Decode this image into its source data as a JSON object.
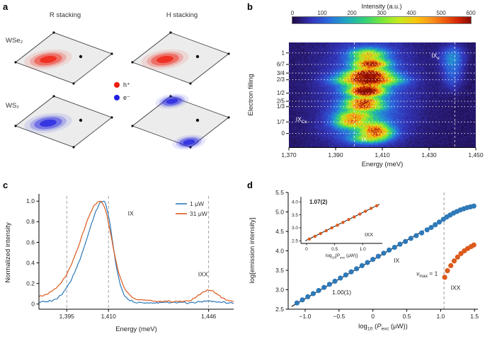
{
  "panel_labels": {
    "a": "a",
    "b": "b",
    "c": "c",
    "d": "d"
  },
  "colors": {
    "colormap": [
      [
        0,
        "#200a45"
      ],
      [
        0.1,
        "#3333b8"
      ],
      [
        0.2,
        "#2b6ae0"
      ],
      [
        0.3,
        "#1fa7c4"
      ],
      [
        0.4,
        "#2fd07c"
      ],
      [
        0.5,
        "#77e83b"
      ],
      [
        0.6,
        "#c8ea1e"
      ],
      [
        0.7,
        "#fbc40e"
      ],
      [
        0.78,
        "#f9941c"
      ],
      [
        0.86,
        "#ee5a0d"
      ],
      [
        0.93,
        "#d42507"
      ],
      [
        1,
        "#8a0d00"
      ]
    ],
    "blue": "#2e79b8",
    "orange": "#db5a1c",
    "hole": "#ee1c0c",
    "electron": "#2121e0",
    "dash": "#999999"
  },
  "panel_a": {
    "columns": [
      "R stacking",
      "H stacking"
    ],
    "rows": [
      "WSe₂",
      "WS₂"
    ],
    "legend": [
      {
        "symbol": "hole",
        "color": "#ee1c0c",
        "label": "h⁺"
      },
      {
        "symbol": "electron",
        "color": "#2121e0",
        "label": "e⁻"
      }
    ],
    "cells": [
      {
        "row": 0,
        "col": 0,
        "blob": "hole",
        "blob_color": "#ee1c0c",
        "blob_pos": "interior-left"
      },
      {
        "row": 0,
        "col": 1,
        "blob": "hole",
        "blob_color": "#ee1c0c",
        "blob_pos": "interior-left"
      },
      {
        "row": 1,
        "col": 0,
        "blob": "electron",
        "blob_color": "#2121e0",
        "blob_pos": "interior-left"
      },
      {
        "row": 1,
        "col": 1,
        "blob": "electron",
        "blob_color": "#2121e0",
        "blob_pos": "corners-vertical"
      }
    ]
  },
  "chart_data": [
    {
      "id": "panel_b",
      "type": "heatmap",
      "title": "",
      "xlabel": "Energy (meV)",
      "ylabel": "Electron filling",
      "xlim": [
        1370,
        1450
      ],
      "flim": [
        -0.17,
        1.13
      ],
      "colorbar": {
        "title": "Intensity (a.u.)",
        "min": 0,
        "max": 600,
        "ticks": [
          "0",
          "100",
          "200",
          "300",
          "400",
          "500",
          "600"
        ]
      },
      "xticks": [
        {
          "v": 1370,
          "t": "1,370"
        },
        {
          "v": 1390,
          "t": "1,390"
        },
        {
          "v": 1410,
          "t": "1,410"
        },
        {
          "v": 1430,
          "t": "1,430"
        },
        {
          "v": 1450,
          "t": "1,450"
        }
      ],
      "yticks": [
        {
          "v": 1,
          "t": "1"
        },
        {
          "v": 0.857,
          "t": "6/7"
        },
        {
          "v": 0.75,
          "t": "3/4"
        },
        {
          "v": 0.667,
          "t": "2/3"
        },
        {
          "v": 0.5,
          "t": "1/2"
        },
        {
          "v": 0.4,
          "t": "2/5"
        },
        {
          "v": 0.333,
          "t": "1/3"
        },
        {
          "v": 0.143,
          "t": "1/7"
        },
        {
          "v": 0,
          "t": "0"
        }
      ],
      "vlines": [
        1398,
        1441
      ],
      "features": [
        [
          1404,
          0.98,
          5,
          0.05,
          340
        ],
        [
          1405,
          0.86,
          5,
          0.04,
          520
        ],
        [
          1404,
          0.75,
          6,
          0.035,
          500
        ],
        [
          1404,
          0.66,
          8,
          0.045,
          600
        ],
        [
          1403,
          0.55,
          5,
          0.035,
          400
        ],
        [
          1403,
          0.5,
          5,
          0.035,
          460
        ],
        [
          1402,
          0.4,
          5,
          0.03,
          430
        ],
        [
          1402,
          0.33,
          5.5,
          0.03,
          390
        ],
        [
          1398,
          0.22,
          5,
          0.045,
          300
        ],
        [
          1396,
          0.13,
          4,
          0.04,
          260
        ],
        [
          1407,
          0.07,
          4,
          0.05,
          260
        ],
        [
          1408,
          0.0,
          4.5,
          0.045,
          300
        ],
        [
          1404,
          -0.07,
          5,
          0.035,
          210
        ],
        [
          1440,
          0.95,
          3.5,
          0.1,
          130
        ],
        [
          1440,
          0.72,
          3,
          0.12,
          85
        ],
        [
          1404,
          0.55,
          13,
          0.5,
          110
        ],
        [
          1401,
          0.1,
          9,
          0.13,
          110
        ]
      ],
      "annotations": [
        {
          "e": 1431,
          "f": 0.94,
          "parts": [
            {
              "t": "IX"
            },
            {
              "t": "e",
              "sub": true
            }
          ]
        },
        {
          "e": 1373,
          "f": 0.15,
          "parts": [
            {
              "t": "IX"
            },
            {
              "t": "Ce",
              "sub": true
            }
          ]
        },
        {
          "e": 1401,
          "f": -0.1,
          "parts": [
            {
              "t": "IX"
            }
          ]
        }
      ]
    },
    {
      "id": "panel_c",
      "type": "line",
      "xlabel": "Energy (meV)",
      "ylabel": "Normalized intensity",
      "xlim": [
        1385,
        1455
      ],
      "ylim": [
        -0.05,
        1.05
      ],
      "xticks": [
        {
          "v": 1395,
          "t": "1,395"
        },
        {
          "v": 1410,
          "t": "1,410"
        },
        {
          "v": 1446,
          "t": "1,446"
        }
      ],
      "yticks": [
        {
          "v": 0,
          "t": "0"
        },
        {
          "v": 0.2,
          "t": "0.2"
        },
        {
          "v": 0.4,
          "t": "0.4"
        },
        {
          "v": 0.6,
          "t": "0.6"
        },
        {
          "v": 0.8,
          "t": "0.8"
        },
        {
          "v": 1.0,
          "t": "1.0"
        }
      ],
      "dashed_lines": [
        1395,
        1410,
        1446
      ],
      "series": [
        {
          "name": "1 μW",
          "color": "#2e79b8",
          "baseline": 0.012,
          "noise": 0.012,
          "peaks": [
            [
              1408.3,
              5.5,
              3.1,
              0.97
            ],
            [
              1399,
              4,
              3,
              0.1
            ],
            [
              1406,
              9,
              6,
              0.1
            ],
            [
              1446,
              3,
              3,
              0.02
            ]
          ]
        },
        {
          "name": "31 μW",
          "color": "#db5a1c",
          "baseline": 0.03,
          "noise": 0.01,
          "peaks": [
            [
              1407.3,
              6.5,
              3.8,
              0.95
            ],
            [
              1404,
              11,
              8,
              0.22
            ],
            [
              1446,
              3.2,
              3.2,
              0.13
            ]
          ]
        }
      ],
      "annotations": [
        {
          "x": 1418,
          "y": 0.86,
          "parts": [
            {
              "t": "IX"
            }
          ]
        },
        {
          "x": 1444,
          "y": 0.27,
          "parts": [
            {
              "t": "IXX"
            }
          ]
        }
      ]
    },
    {
      "id": "panel_d",
      "type": "scatter",
      "ylabel": "log[emission intensity]",
      "xlabel_parts": [
        {
          "t": "log"
        },
        {
          "t": "10",
          "sub": true
        },
        {
          "t": " ("
        },
        {
          "t": "P",
          "i": true
        },
        {
          "t": "exc",
          "sub": true
        },
        {
          "t": " (μW))"
        }
      ],
      "xlim": [
        -1.25,
        1.55
      ],
      "ylim": [
        2.5,
        5.5
      ],
      "xticks": [
        {
          "v": -1.0,
          "t": "−1.0"
        },
        {
          "v": -0.5,
          "t": "−0.5"
        },
        {
          "v": 0,
          "t": "0"
        },
        {
          "v": 0.5,
          "t": "0.5"
        },
        {
          "v": 1.0,
          "t": "1.0"
        },
        {
          "v": 1.5,
          "t": "1.5"
        }
      ],
      "yticks": [
        {
          "v": 2.5,
          "t": "2.5"
        },
        {
          "v": 3.0,
          "t": "3.0"
        },
        {
          "v": 3.5,
          "t": "3.5"
        },
        {
          "v": 4.0,
          "t": "4.0"
        },
        {
          "v": 4.5,
          "t": "4.5"
        },
        {
          "v": 5.0,
          "t": "5.0"
        },
        {
          "v": 5.5,
          "t": "5.5"
        }
      ],
      "dashed_vline": 1.05,
      "fit_line": {
        "x1": -1.2,
        "y1": 2.57,
        "x2": 0.75,
        "y2": 4.52,
        "label": "1.00(1)",
        "label_x": -0.46,
        "label_y": 2.88
      },
      "series_ix": {
        "name": "IX",
        "color": "#2e79b8",
        "points": [
          [
            -1.12,
            2.66
          ],
          [
            -1.04,
            2.74
          ],
          [
            -0.96,
            2.82
          ],
          [
            -0.88,
            2.9
          ],
          [
            -0.8,
            2.98
          ],
          [
            -0.72,
            3.06
          ],
          [
            -0.64,
            3.14
          ],
          [
            -0.56,
            3.22
          ],
          [
            -0.48,
            3.3
          ],
          [
            -0.4,
            3.38
          ],
          [
            -0.32,
            3.46
          ],
          [
            -0.24,
            3.54
          ],
          [
            -0.16,
            3.62
          ],
          [
            -0.08,
            3.7
          ],
          [
            0.0,
            3.78
          ],
          [
            0.08,
            3.86
          ],
          [
            0.16,
            3.94
          ],
          [
            0.24,
            4.02
          ],
          [
            0.32,
            4.09
          ],
          [
            0.4,
            4.17
          ],
          [
            0.48,
            4.24
          ],
          [
            0.56,
            4.32
          ],
          [
            0.64,
            4.39
          ],
          [
            0.72,
            4.46
          ],
          [
            0.8,
            4.54
          ],
          [
            0.86,
            4.6
          ],
          [
            0.92,
            4.67
          ],
          [
            0.98,
            4.74
          ],
          [
            1.04,
            4.81
          ],
          [
            1.09,
            4.87
          ],
          [
            1.14,
            4.92
          ],
          [
            1.19,
            4.97
          ],
          [
            1.24,
            5.01
          ],
          [
            1.29,
            5.05
          ],
          [
            1.34,
            5.08
          ],
          [
            1.39,
            5.11
          ],
          [
            1.44,
            5.13
          ],
          [
            1.49,
            5.15
          ]
        ]
      },
      "series_ixx": {
        "name": "IXX",
        "color": "#db5a1c",
        "points": [
          [
            1.06,
            3.32
          ],
          [
            1.1,
            3.49
          ],
          [
            1.15,
            3.62
          ],
          [
            1.2,
            3.74
          ],
          [
            1.25,
            3.84
          ],
          [
            1.3,
            3.93
          ],
          [
            1.35,
            4.0
          ],
          [
            1.4,
            4.06
          ],
          [
            1.45,
            4.11
          ],
          [
            1.49,
            4.15
          ]
        ]
      },
      "annotations": [
        {
          "x": 0.35,
          "y": 3.7,
          "parts": [
            {
              "t": "IX"
            }
          ]
        },
        {
          "x": 0.8,
          "y": 3.36,
          "parts": [
            {
              "t": "ν",
              "i": true
            },
            {
              "t": "max",
              "sub": true
            },
            {
              "t": " = 1"
            }
          ]
        },
        {
          "x": 1.22,
          "y": 3.0,
          "parts": [
            {
              "t": "IXX"
            }
          ]
        }
      ],
      "inset": {
        "slope_label": "1.07(2)",
        "label": "IXX",
        "xlabel_parts": [
          {
            "t": "log"
          },
          {
            "t": "10",
            "sub": true
          },
          {
            "t": "["
          },
          {
            "t": "P",
            "i": true
          },
          {
            "t": "exc",
            "sub": true
          },
          {
            "t": " (μW)]"
          }
        ],
        "xlim": [
          -0.1,
          1.35
        ],
        "ylim": [
          2.4,
          4.2
        ],
        "xticks": [
          {
            "v": 0,
            "t": "0"
          },
          {
            "v": 0.5,
            "t": "0.5"
          },
          {
            "v": 1.0,
            "t": "1.0"
          }
        ],
        "yticks": [
          {
            "v": 2.5,
            "t": "2.5"
          },
          {
            "v": 3.0,
            "t": "3.0"
          },
          {
            "v": 3.5,
            "t": "3.5"
          },
          {
            "v": 4.0,
            "t": "4.0"
          }
        ],
        "fit_line": {
          "x1": -0.02,
          "y1": 2.5,
          "x2": 1.3,
          "y2": 3.91
        },
        "points": [
          [
            0.05,
            2.57
          ],
          [
            0.15,
            2.67
          ],
          [
            0.25,
            2.78
          ],
          [
            0.35,
            2.89
          ],
          [
            0.45,
            3.0
          ],
          [
            0.55,
            3.1
          ],
          [
            0.65,
            3.21
          ],
          [
            0.75,
            3.32
          ],
          [
            0.85,
            3.42
          ],
          [
            0.95,
            3.53
          ],
          [
            1.05,
            3.64
          ],
          [
            1.15,
            3.75
          ],
          [
            1.25,
            3.85
          ]
        ]
      }
    }
  ]
}
